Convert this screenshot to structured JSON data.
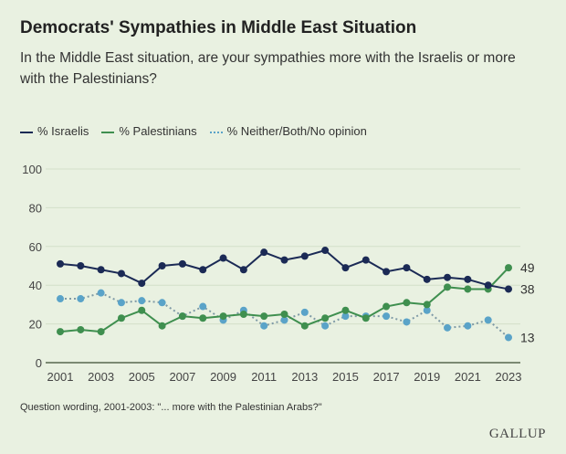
{
  "chart_data": {
    "type": "line",
    "title": "Democrats' Sympathies in Middle East Situation",
    "subtitle": "In the Middle East situation, are your sympathies more with the Israelis or more with the Palestinians?",
    "xlabel": "",
    "ylabel": "",
    "ylim": [
      0,
      100
    ],
    "yticks": [
      0,
      20,
      40,
      60,
      80,
      100
    ],
    "xticks": [
      2001,
      2003,
      2005,
      2007,
      2009,
      2011,
      2013,
      2015,
      2017,
      2019,
      2021,
      2023
    ],
    "grid": true,
    "legend_position": "top-left",
    "x": [
      2001,
      2002,
      2003,
      2004,
      2005,
      2006,
      2007,
      2008,
      2009,
      2010,
      2011,
      2012,
      2013,
      2014,
      2015,
      2016,
      2017,
      2018,
      2019,
      2020,
      2021,
      2022,
      2023
    ],
    "series": [
      {
        "name": "% Israelis",
        "color": "#1b2a55",
        "style": "solid",
        "values": [
          51,
          50,
          48,
          46,
          41,
          50,
          51,
          48,
          54,
          48,
          57,
          53,
          55,
          58,
          49,
          53,
          47,
          49,
          43,
          44,
          43,
          40,
          38
        ]
      },
      {
        "name": "% Palestinians",
        "color": "#3f8f4f",
        "style": "solid",
        "values": [
          16,
          17,
          16,
          23,
          27,
          19,
          24,
          23,
          24,
          25,
          24,
          25,
          19,
          23,
          27,
          23,
          29,
          31,
          30,
          39,
          38,
          38,
          49
        ]
      },
      {
        "name": "% Neither/Both/No opinion",
        "color": "#5aa3c8",
        "style": "dotted",
        "values": [
          33,
          33,
          36,
          31,
          32,
          31,
          24,
          29,
          22,
          27,
          19,
          22,
          26,
          19,
          24,
          24,
          24,
          21,
          27,
          18,
          19,
          22,
          13
        ]
      }
    ],
    "end_labels": [
      "38",
      "49",
      "13"
    ],
    "note": "Question wording, 2001-2003: \"... more with the Palestinian Arabs?\""
  },
  "brand": "GALLUP"
}
